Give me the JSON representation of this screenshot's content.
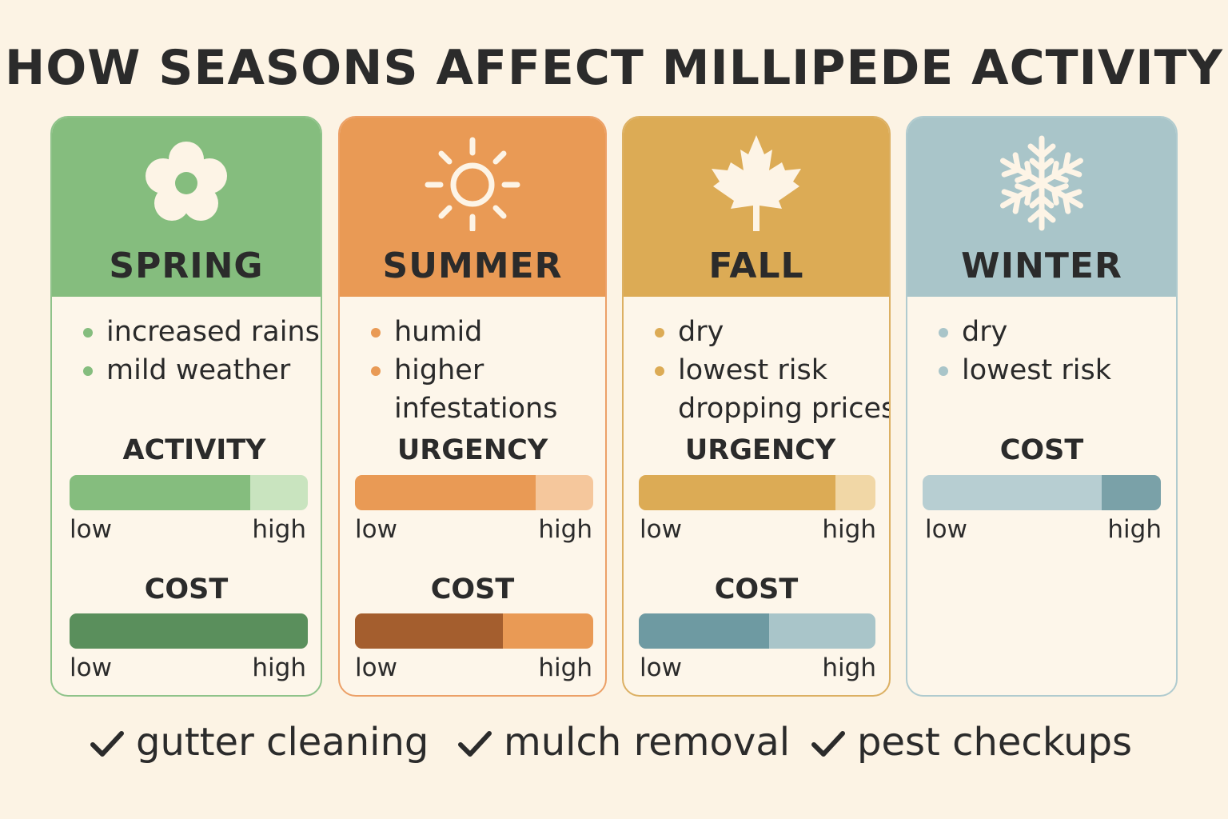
{
  "title": "HOW SEASONS AFFECT MILLIPEDE ACTIVITY",
  "colors": {
    "spring": "#85bd7e",
    "summer": "#e99a55",
    "fall": "#dcab55",
    "winter": "#a9c5c9"
  },
  "seasons": [
    {
      "name": "SPRING",
      "icon": "flower-icon",
      "bullets": [
        "increased rains",
        "mild weather"
      ],
      "metrics": [
        {
          "label": "ACTIVITY",
          "low": "low",
          "high": "high",
          "level": 0.76
        },
        {
          "label": "COST",
          "low": "low",
          "high": "high",
          "level": 1.0
        }
      ]
    },
    {
      "name": "SUMMER",
      "icon": "sun-icon",
      "bullets": [
        "humid",
        "higher",
        "infestations"
      ],
      "metrics": [
        {
          "label": "URGENCY",
          "low": "low",
          "high": "high",
          "level": 0.76
        },
        {
          "label": "COST",
          "low": "low",
          "high": "high",
          "level": 0.62
        }
      ]
    },
    {
      "name": "FALL",
      "icon": "maple-leaf-icon",
      "bullets": [
        "dry",
        "lowest risk",
        "dropping prices"
      ],
      "metrics": [
        {
          "label": "URGENCY",
          "low": "low",
          "high": "high",
          "level": 0.83
        },
        {
          "label": "COST",
          "low": "low",
          "high": "high",
          "level": 0.55
        }
      ]
    },
    {
      "name": "WINTER",
      "icon": "snowflake-icon",
      "bullets": [
        "dry",
        "lowest risk"
      ],
      "metrics": [
        {
          "label": "COST",
          "low": "low",
          "high": "high",
          "level": 0.75
        }
      ]
    }
  ],
  "footer": [
    "gutter cleaning",
    "mulch removal",
    "pest checkups"
  ]
}
